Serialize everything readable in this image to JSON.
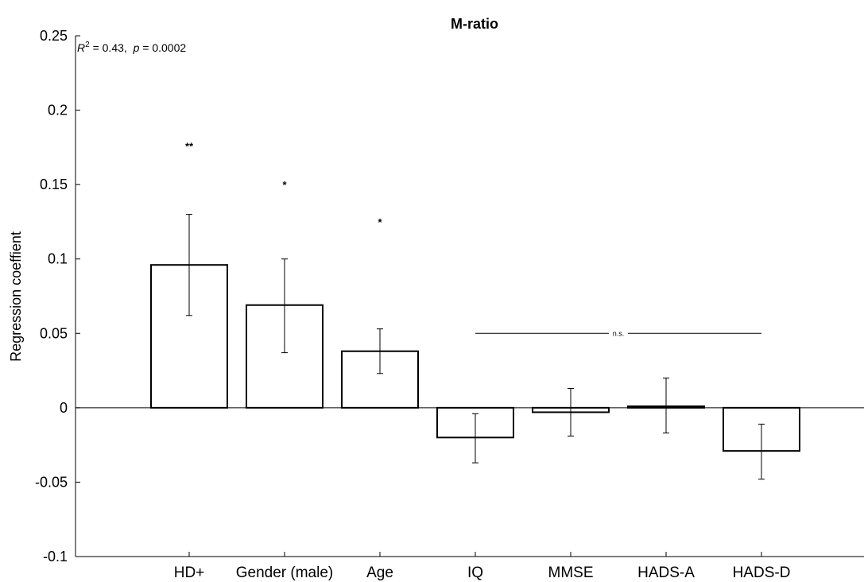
{
  "chart_data": {
    "type": "bar",
    "title": "M-ratio",
    "ylabel": "Regression coeffient",
    "xlabel": "",
    "ylim": [
      -0.1,
      0.25
    ],
    "yticks": [
      -0.1,
      -0.05,
      0,
      0.05,
      0.1,
      0.15,
      0.2,
      0.25
    ],
    "ytick_labels": [
      "-0.1",
      "-0.05",
      "0",
      "0.05",
      "0.1",
      "0.15",
      "0.2",
      "0.25"
    ],
    "categories": [
      "HD+",
      "Gender (male)",
      "Age",
      "IQ",
      "MMSE",
      "HADS-A",
      "HADS-D"
    ],
    "values": [
      0.096,
      0.069,
      0.038,
      -0.02,
      -0.003,
      0.001,
      -0.029
    ],
    "error_low": [
      0.062,
      0.037,
      0.023,
      -0.037,
      -0.019,
      -0.017,
      -0.048
    ],
    "error_high": [
      0.13,
      0.1,
      0.053,
      -0.004,
      0.013,
      0.02,
      -0.011
    ],
    "significance": [
      "**",
      "*",
      "*",
      "",
      "",
      "",
      ""
    ],
    "significance_y": [
      0.176,
      0.15,
      0.125,
      null,
      null,
      null,
      null
    ],
    "ns_bracket": {
      "from": "IQ",
      "to": "HADS-D",
      "y": 0.05,
      "label": "n.s."
    },
    "stats": {
      "r2_label": "R",
      "r2_sup": "2",
      "r2_value": " = 0.43,  ",
      "p_label": "p",
      "p_value": " = 0.0002"
    },
    "grid": false,
    "bar_fill": "#ffffff",
    "bar_stroke": "#000000"
  }
}
